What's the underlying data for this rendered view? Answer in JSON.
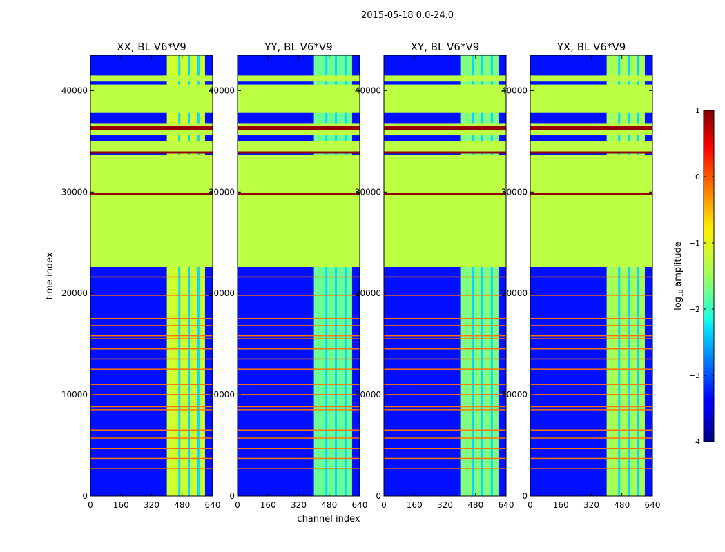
{
  "chart_data": {
    "type": "heatmap",
    "title": "2015-05-18 0.0-24.0",
    "xlabel": "channel index",
    "ylabel": "time index",
    "xlim": [
      0,
      640
    ],
    "ylim": [
      0,
      43500
    ],
    "x_ticks": [
      0,
      160,
      320,
      480,
      640
    ],
    "y_ticks": [
      0,
      10000,
      20000,
      30000,
      40000
    ],
    "colorbar": {
      "label_prefix": "log",
      "label_sub": "10",
      "label_suffix": " amplitude",
      "range": [
        -4,
        1
      ],
      "ticks": [
        1,
        0,
        -1,
        -2,
        -3,
        -4
      ],
      "tick_labels": [
        "1",
        "0",
        "−1",
        "−2",
        "−3",
        "−4"
      ]
    },
    "panels": [
      {
        "title": "XX, BL V6*V9",
        "band_channels": [
          400,
          600
        ],
        "band_level": -1.1
      },
      {
        "title": "YY, BL V6*V9",
        "band_channels": [
          400,
          600
        ],
        "band_level": -1.6
      },
      {
        "title": "XY, BL V6*V9",
        "band_channels": [
          400,
          600
        ],
        "band_level": -1.5
      },
      {
        "title": "YX, BL V6*V9",
        "band_channels": [
          400,
          600
        ],
        "band_level": -1.3
      }
    ],
    "background_level": -3.3,
    "flagged_level": -1.2,
    "flagged_time_ranges": [
      [
        22600,
        33700
      ],
      [
        34000,
        35000
      ],
      [
        35600,
        36800
      ],
      [
        37800,
        40600
      ],
      [
        40900,
        41500
      ]
    ],
    "saturated_time_ranges": [
      [
        29700,
        29900
      ],
      [
        36100,
        36500
      ],
      [
        33800,
        34000
      ]
    ],
    "rfi_time_lines": [
      2700,
      3700,
      4700,
      5700,
      6500,
      8500,
      8800,
      10000,
      11000,
      12500,
      13500,
      14500,
      15500,
      15800,
      16800,
      17500,
      19800,
      21600
    ]
  }
}
